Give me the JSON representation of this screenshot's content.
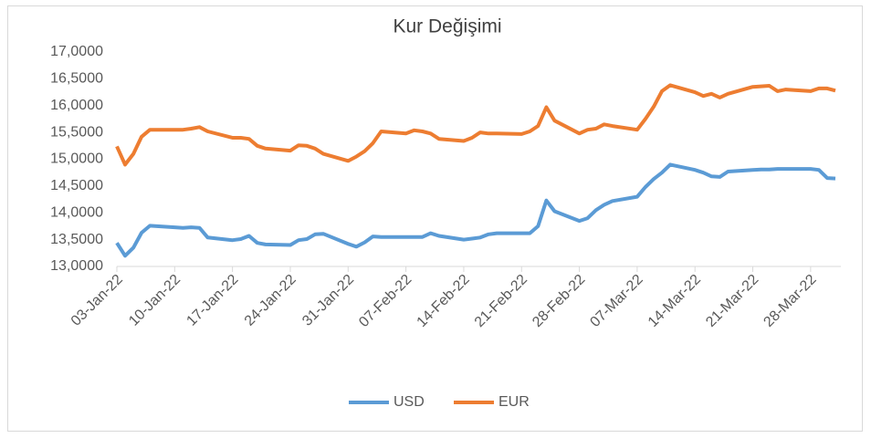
{
  "chart_data": {
    "type": "line",
    "title": "Kur Değişimi",
    "x": [
      "03-Jan-22",
      "04-Jan-22",
      "05-Jan-22",
      "06-Jan-22",
      "07-Jan-22",
      "10-Jan-22",
      "11-Jan-22",
      "12-Jan-22",
      "13-Jan-22",
      "14-Jan-22",
      "17-Jan-22",
      "18-Jan-22",
      "19-Jan-22",
      "20-Jan-22",
      "21-Jan-22",
      "24-Jan-22",
      "25-Jan-22",
      "26-Jan-22",
      "27-Jan-22",
      "28-Jan-22",
      "31-Jan-22",
      "01-Feb-22",
      "02-Feb-22",
      "03-Feb-22",
      "04-Feb-22",
      "07-Feb-22",
      "08-Feb-22",
      "09-Feb-22",
      "10-Feb-22",
      "11-Feb-22",
      "14-Feb-22",
      "15-Feb-22",
      "16-Feb-22",
      "17-Feb-22",
      "18-Feb-22",
      "21-Feb-22",
      "22-Feb-22",
      "23-Feb-22",
      "24-Feb-22",
      "25-Feb-22",
      "28-Feb-22",
      "01-Mar-22",
      "02-Mar-22",
      "03-Mar-22",
      "04-Mar-22",
      "07-Mar-22",
      "08-Mar-22",
      "09-Mar-22",
      "10-Mar-22",
      "11-Mar-22",
      "14-Mar-22",
      "15-Mar-22",
      "16-Mar-22",
      "17-Mar-22",
      "18-Mar-22",
      "21-Mar-22",
      "22-Mar-22",
      "23-Mar-22",
      "24-Mar-22",
      "25-Mar-22",
      "28-Mar-22",
      "29-Mar-22",
      "30-Mar-22",
      "31-Mar-22"
    ],
    "series": [
      {
        "name": "USD",
        "color": "#5b9bd5",
        "values": [
          13.44,
          13.2,
          13.35,
          13.63,
          13.76,
          13.73,
          13.72,
          13.73,
          13.72,
          13.54,
          13.49,
          13.51,
          13.57,
          13.44,
          13.41,
          13.4,
          13.49,
          13.51,
          13.6,
          13.61,
          13.42,
          13.37,
          13.45,
          13.56,
          13.55,
          13.55,
          13.55,
          13.55,
          13.62,
          13.57,
          13.5,
          13.52,
          13.54,
          13.6,
          13.62,
          13.62,
          13.62,
          13.75,
          14.23,
          14.03,
          13.85,
          13.9,
          14.05,
          14.15,
          14.22,
          14.3,
          14.48,
          14.63,
          14.75,
          14.9,
          14.8,
          14.75,
          14.68,
          14.67,
          14.77,
          14.8,
          14.81,
          14.81,
          14.82,
          14.82,
          14.82,
          14.8,
          14.65,
          14.64
        ]
      },
      {
        "name": "EUR",
        "color": "#ed7d31",
        "values": [
          15.24,
          14.9,
          15.1,
          15.42,
          15.55,
          15.55,
          15.55,
          15.57,
          15.6,
          15.52,
          15.4,
          15.4,
          15.38,
          15.25,
          15.2,
          15.16,
          15.26,
          15.25,
          15.2,
          15.1,
          14.97,
          15.05,
          15.15,
          15.3,
          15.52,
          15.48,
          15.54,
          15.52,
          15.48,
          15.38,
          15.34,
          15.4,
          15.5,
          15.48,
          15.48,
          15.47,
          15.52,
          15.62,
          15.97,
          15.72,
          15.48,
          15.55,
          15.57,
          15.65,
          15.62,
          15.55,
          15.75,
          15.98,
          16.27,
          16.38,
          16.25,
          16.18,
          16.22,
          16.15,
          16.22,
          16.35,
          16.36,
          16.37,
          16.27,
          16.3,
          16.27,
          16.32,
          16.32,
          16.28
        ]
      }
    ],
    "xlim": [
      "03-Jan-22",
      "31-Mar-22"
    ],
    "xticks": [
      "03-Jan-22",
      "10-Jan-22",
      "17-Jan-22",
      "24-Jan-22",
      "31-Jan-22",
      "07-Feb-22",
      "14-Feb-22",
      "21-Feb-22",
      "28-Feb-22",
      "07-Mar-22",
      "14-Mar-22",
      "21-Mar-22",
      "28-Mar-22"
    ],
    "ylim": [
      13,
      17
    ],
    "yticks": [
      {
        "value": 13,
        "label": "13,0000"
      },
      {
        "value": 13.5,
        "label": "13,5000"
      },
      {
        "value": 14,
        "label": "14,0000"
      },
      {
        "value": 14.5,
        "label": "14,5000"
      },
      {
        "value": 15,
        "label": "15,0000"
      },
      {
        "value": 15.5,
        "label": "15,5000"
      },
      {
        "value": 16,
        "label": "16,0000"
      },
      {
        "value": 16.5,
        "label": "16,5000"
      },
      {
        "value": 17,
        "label": "17,0000"
      }
    ],
    "grid": false,
    "legend": "bottom"
  }
}
